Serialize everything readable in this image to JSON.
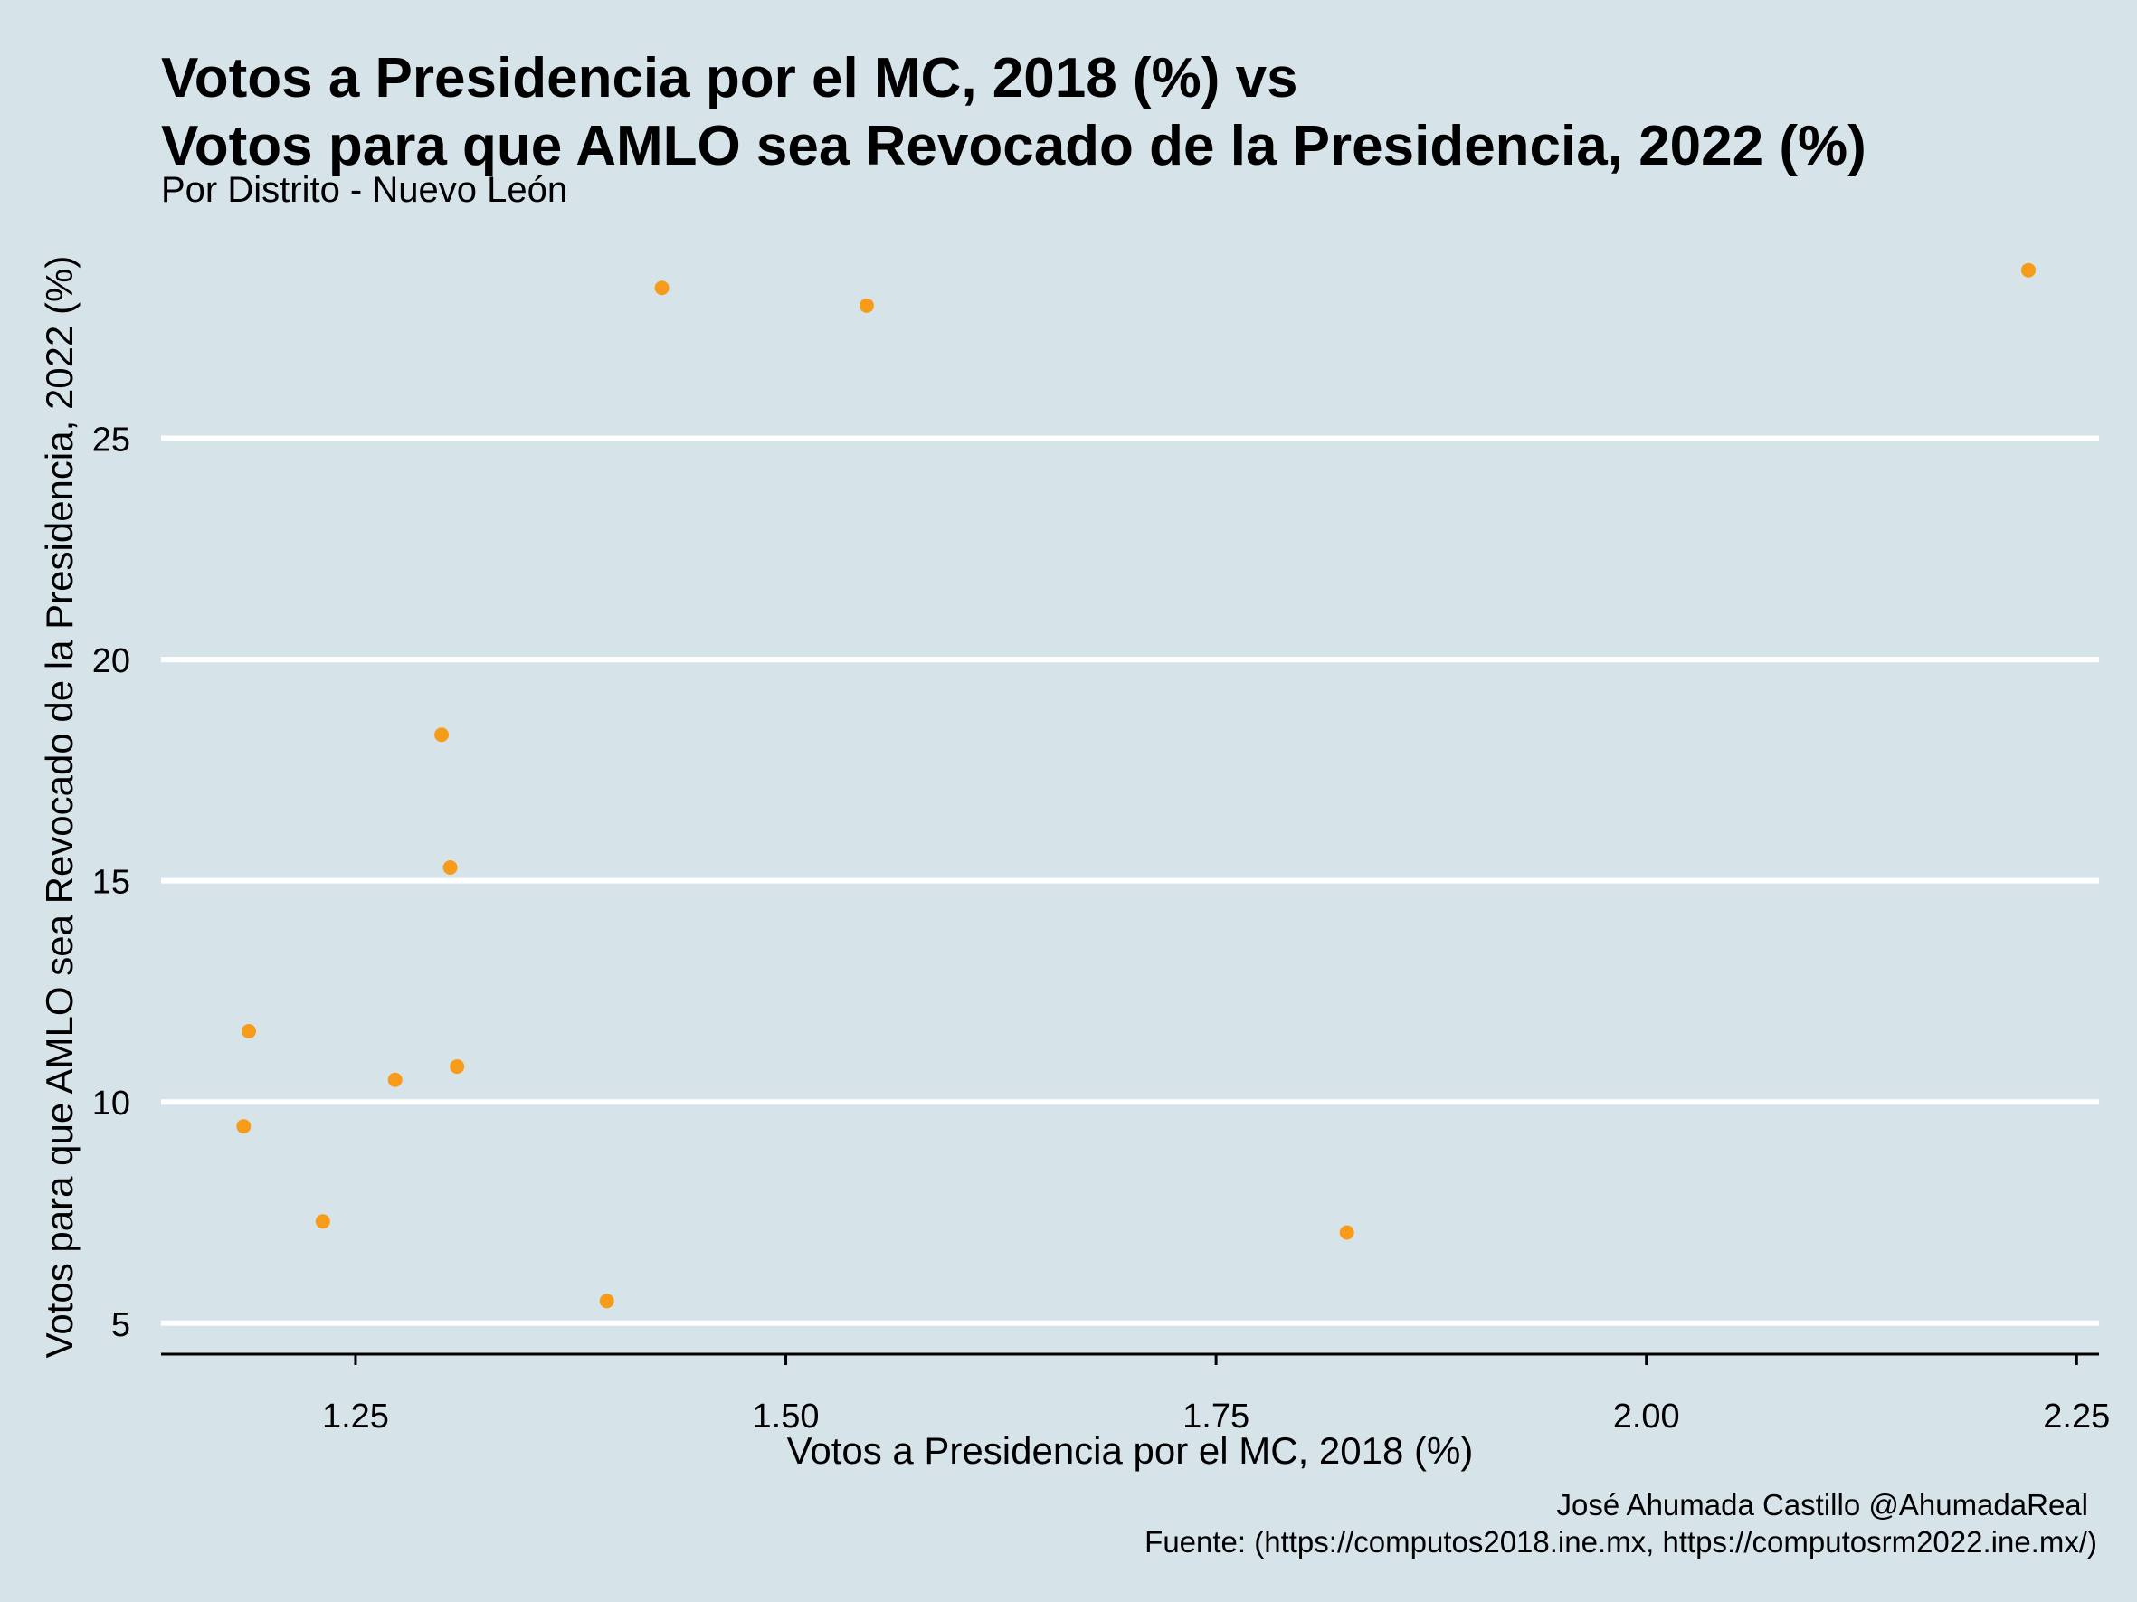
{
  "chart_data": {
    "type": "scatter",
    "title_lines": [
      "Votos a Presidencia por el MC, 2018 (%) vs",
      "Votos para que AMLO sea Revocado de la Presidencia, 2022 (%)"
    ],
    "subtitle": "Por Distrito - Nuevo León",
    "xlabel": "Votos a Presidencia por el MC, 2018 (%)",
    "ylabel": "Votos para que AMLO sea Revocado de la Presidencia, 2022 (%)",
    "caption_lines": [
      "José Ahumada Castillo @AhumadaReal",
      "Fuente: (https://computos2018.ine.mx, https://computosrm2022.ine.mx/)"
    ],
    "x_ticks": [
      "1.25",
      "1.50",
      "1.75",
      "2.00",
      "2.25"
    ],
    "y_ticks": [
      "5",
      "10",
      "15",
      "20",
      "25"
    ],
    "xlim": [
      1.137,
      2.263
    ],
    "ylim": [
      4.3,
      30.0
    ],
    "grid": "horizontal-major",
    "point_color": "#f79c1a",
    "background_color": "#d6e4ea",
    "points": [
      {
        "x": 1.428,
        "y": 28.4
      },
      {
        "x": 1.547,
        "y": 28.0
      },
      {
        "x": 2.222,
        "y": 28.8
      },
      {
        "x": 1.3,
        "y": 18.3
      },
      {
        "x": 1.305,
        "y": 15.3
      },
      {
        "x": 1.188,
        "y": 11.6
      },
      {
        "x": 1.185,
        "y": 9.45
      },
      {
        "x": 1.273,
        "y": 10.5
      },
      {
        "x": 1.309,
        "y": 10.8
      },
      {
        "x": 1.231,
        "y": 7.3
      },
      {
        "x": 1.396,
        "y": 5.5
      },
      {
        "x": 1.826,
        "y": 7.05
      }
    ]
  }
}
